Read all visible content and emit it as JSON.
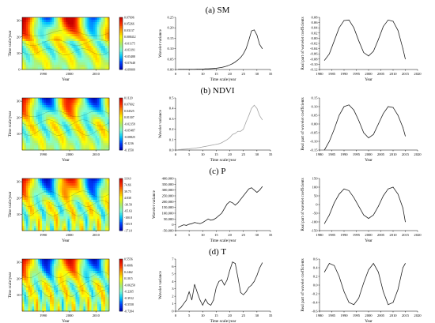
{
  "chart_data": [
    {
      "id": "sm",
      "title": "(a) SM",
      "wavelet_map": {
        "type": "heatmap",
        "xlabel": "Year",
        "ylabel": "Time scale/year",
        "xlim": [
          1982,
          2015
        ],
        "ylim": [
          0,
          32
        ],
        "x_ticks": [
          1990,
          2000,
          2010
        ],
        "y_ticks": [
          30,
          20,
          10,
          0
        ],
        "colorbar_ticks": [
          "0.07696",
          "0.05266",
          "0.03137",
          "0.008412",
          "-0.01175",
          "-0.03191",
          "-0.05488",
          "-0.07648",
          "-0.09909"
        ]
      },
      "variance": {
        "type": "line",
        "xlabel": "Time scale/year",
        "ylabel": "Wavelet variance",
        "xlim": [
          0,
          35
        ],
        "ylim": [
          0,
          0.25
        ],
        "x_ticks": [
          "0",
          "5",
          "10",
          "15",
          "20",
          "25",
          "30",
          "35"
        ],
        "y_ticks": [
          "0.00",
          "0.05",
          "0.10",
          "0.15",
          "0.20",
          "0.25"
        ],
        "x": [
          1,
          2,
          3,
          4,
          5,
          6,
          7,
          8,
          9,
          10,
          11,
          12,
          13,
          14,
          15,
          16,
          17,
          18,
          19,
          20,
          21,
          22,
          23,
          24,
          25,
          26,
          27,
          28,
          29,
          30,
          31,
          32
        ],
        "y": [
          0.001,
          0.001,
          0.001,
          0.001,
          0.001,
          0.001,
          0.001,
          0.002,
          0.002,
          0.002,
          0.003,
          0.003,
          0.004,
          0.005,
          0.006,
          0.008,
          0.01,
          0.013,
          0.017,
          0.022,
          0.028,
          0.036,
          0.046,
          0.058,
          0.075,
          0.1,
          0.14,
          0.185,
          0.19,
          0.165,
          0.12,
          0.1
        ]
      },
      "real_part": {
        "type": "line",
        "xlabel": "Year",
        "ylabel": "Real part of wavelet coefficients",
        "xlim": [
          1980,
          2020
        ],
        "ylim": [
          -0.12,
          0.08
        ],
        "x_ticks": [
          "1980",
          "1985",
          "1990",
          "1995",
          "2000",
          "2005",
          "2010",
          "2015",
          "2020"
        ],
        "y_ticks": [
          "0.08",
          "0.06",
          "0.04",
          "0.02",
          "0.00",
          "-0.02",
          "-0.04",
          "-0.06",
          "-0.08",
          "-0.10",
          "-0.12"
        ],
        "x": [
          1982,
          1984,
          1986,
          1988,
          1990,
          1992,
          1994,
          1996,
          1998,
          2000,
          2002,
          2004,
          2006,
          2008,
          2010,
          2012,
          2014,
          2015
        ],
        "y": [
          -0.085,
          -0.06,
          -0.01,
          0.04,
          0.068,
          0.07,
          0.04,
          -0.01,
          -0.055,
          -0.068,
          -0.05,
          -0.005,
          0.045,
          0.07,
          0.065,
          0.03,
          -0.04,
          -0.08
        ]
      }
    },
    {
      "id": "ndvi",
      "title": "(b) NDVI",
      "wavelet_map": {
        "type": "heatmap",
        "xlabel": "Year",
        "ylabel": "Time scale/year",
        "xlim": [
          1982,
          2015
        ],
        "ylim": [
          0,
          32
        ],
        "x_ticks": [
          1990,
          2000,
          2010
        ],
        "y_ticks": [
          30,
          20,
          10
        ],
        "colorbar_ticks": [
          "0.1120",
          "0.07602",
          "0.04525",
          "0.01307",
          "-0.02159",
          "-0.05487",
          "-0.08825",
          "-0.1216",
          "-0.1550"
        ]
      },
      "variance": {
        "type": "line",
        "xlabel": "Time scale/year",
        "ylabel": "Wavelet variance",
        "xlim": [
          0,
          35
        ],
        "ylim": [
          0,
          0.5
        ],
        "x_ticks": [
          "0",
          "5",
          "10",
          "15",
          "20",
          "25",
          "30",
          "35"
        ],
        "y_ticks": [
          "0.0",
          "0.1",
          "0.2",
          "0.3",
          "0.4",
          "0.5"
        ],
        "x": [
          1,
          2,
          3,
          4,
          5,
          6,
          7,
          8,
          9,
          10,
          11,
          12,
          13,
          14,
          15,
          16,
          17,
          18,
          19,
          20,
          21,
          22,
          23,
          24,
          25,
          26,
          27,
          28,
          29,
          30,
          31,
          32
        ],
        "y": [
          0.005,
          0.006,
          0.008,
          0.01,
          0.012,
          0.015,
          0.018,
          0.022,
          0.025,
          0.03,
          0.035,
          0.04,
          0.045,
          0.05,
          0.055,
          0.06,
          0.07,
          0.085,
          0.1,
          0.12,
          0.15,
          0.16,
          0.18,
          0.18,
          0.2,
          0.27,
          0.33,
          0.4,
          0.43,
          0.4,
          0.33,
          0.29
        ]
      },
      "real_part": {
        "type": "line",
        "xlabel": "Year",
        "ylabel": "Real part of wavelet coefficients",
        "xlim": [
          1980,
          2020
        ],
        "ylim": [
          -0.15,
          0.15
        ],
        "x_ticks": [
          "1980",
          "1985",
          "1990",
          "1995",
          "2000",
          "2005",
          "2010",
          "2015",
          "2020"
        ],
        "y_ticks": [
          "0.15",
          "0.10",
          "0.05",
          "0.00",
          "-0.05",
          "-0.10",
          "-0.15"
        ],
        "x": [
          1982,
          1984,
          1986,
          1988,
          1990,
          1992,
          1994,
          1996,
          1998,
          2000,
          2002,
          2004,
          2006,
          2008,
          2010,
          2012,
          2014,
          2015
        ],
        "y": [
          -0.15,
          -0.1,
          -0.03,
          0.05,
          0.1,
          0.11,
          0.08,
          0.02,
          -0.05,
          -0.08,
          -0.06,
          0.0,
          0.06,
          0.1,
          0.095,
          0.05,
          -0.02,
          -0.07
        ]
      }
    },
    {
      "id": "p",
      "title": "(c) P",
      "wavelet_map": {
        "type": "heatmap",
        "xlabel": "Year",
        "ylabel": "Time scale/year",
        "xlim": [
          1982,
          2015
        ],
        "ylim": [
          0,
          32
        ],
        "x_ticks": [
          1990,
          2000,
          2010
        ],
        "y_ticks": [
          30,
          20,
          10
        ],
        "colorbar_ticks": [
          "110.0",
          "74.66",
          "39.75",
          "4.838",
          "-30.50",
          "-65.63",
          "-100.8",
          "-135.9",
          "-171.0"
        ]
      },
      "variance": {
        "type": "line",
        "xlabel": "Time scale/year",
        "ylabel": "Wavelet variance",
        "xlim": [
          0,
          35
        ],
        "ylim": [
          -50000,
          400000
        ],
        "x_ticks": [
          "0",
          "5",
          "10",
          "15",
          "20",
          "25",
          "30",
          "35"
        ],
        "y_ticks": [
          "400,000",
          "350,000",
          "300,000",
          "250,000",
          "200,000",
          "150,000",
          "100,000",
          "50,000",
          "0",
          "-50,000"
        ],
        "x": [
          1,
          2,
          3,
          4,
          5,
          6,
          7,
          8,
          9,
          10,
          11,
          12,
          13,
          14,
          15,
          16,
          17,
          18,
          19,
          20,
          21,
          22,
          23,
          24,
          25,
          26,
          27,
          28,
          29,
          30,
          31,
          32
        ],
        "y": [
          -20000,
          -10000,
          0,
          -5000,
          5000,
          10000,
          20000,
          15000,
          10000,
          20000,
          35000,
          50000,
          40000,
          45000,
          60000,
          80000,
          100000,
          140000,
          180000,
          200000,
          190000,
          170000,
          190000,
          220000,
          250000,
          280000,
          310000,
          320000,
          300000,
          280000,
          300000,
          330000
        ]
      },
      "real_part": {
        "type": "line",
        "xlabel": "Year",
        "ylabel": "Real part of wavelet coefficients",
        "xlim": [
          1980,
          2020
        ],
        "ylim": [
          -150,
          150
        ],
        "x_ticks": [
          "1980",
          "1985",
          "1990",
          "1995",
          "2000",
          "2005",
          "2010",
          "2015",
          "2020"
        ],
        "y_ticks": [
          "150",
          "100",
          "50",
          "0",
          "-50",
          "-100",
          "-150"
        ],
        "x": [
          1982,
          1984,
          1986,
          1988,
          1990,
          1992,
          1994,
          1996,
          1998,
          2000,
          2002,
          2004,
          2006,
          2008,
          2010,
          2012,
          2014,
          2015
        ],
        "y": [
          -110,
          -60,
          10,
          60,
          90,
          80,
          40,
          -10,
          -60,
          -80,
          -60,
          -10,
          50,
          90,
          100,
          60,
          -20,
          -100
        ]
      }
    },
    {
      "id": "t",
      "title": "(d) T",
      "wavelet_map": {
        "type": "heatmap",
        "xlabel": "Year",
        "ylabel": "Time scale/year",
        "xlim": [
          1982,
          2015
        ],
        "ylim": [
          0,
          32
        ],
        "x_ticks": [
          1990,
          2000,
          2010
        ],
        "y_ticks": [
          30,
          20,
          10
        ],
        "colorbar_ticks": [
          "0.5556",
          "0.4006",
          "0.2462",
          "0.1015",
          "-0.06250",
          "-0.2265",
          "-0.3912",
          "-0.5558",
          "-0.7204"
        ]
      },
      "variance": {
        "type": "line",
        "xlabel": "Time scale/year",
        "ylabel": "Wavelet variance",
        "xlim": [
          0,
          35
        ],
        "ylim": [
          0,
          7
        ],
        "x_ticks": [
          "0",
          "5",
          "10",
          "15",
          "20",
          "25",
          "30",
          "35"
        ],
        "y_ticks": [
          "7",
          "6",
          "5",
          "4",
          "3",
          "2",
          "1",
          "0"
        ],
        "x": [
          1,
          2,
          3,
          4,
          5,
          6,
          7,
          8,
          9,
          10,
          11,
          12,
          13,
          14,
          15,
          16,
          17,
          18,
          19,
          20,
          21,
          22,
          23,
          24,
          25,
          26,
          27,
          28,
          29,
          30,
          31,
          32
        ],
        "y": [
          0.2,
          0.5,
          1.0,
          1.5,
          2.6,
          1.5,
          3.6,
          2.5,
          1.5,
          0.8,
          1.6,
          1.0,
          0.8,
          1.5,
          3.2,
          4.0,
          4.2,
          3.5,
          4.2,
          5.5,
          6.6,
          6.4,
          4.5,
          2.5,
          2.2,
          2.6,
          3.2,
          3.5,
          4.0,
          4.8,
          5.8,
          6.5
        ]
      },
      "real_part": {
        "type": "line",
        "xlabel": "Year",
        "ylabel": "Real part of wavelet coefficients",
        "xlim": [
          1980,
          2020
        ],
        "ylim": [
          -0.6,
          0.6
        ],
        "x_ticks": [
          "1980",
          "1985",
          "1990",
          "1995",
          "2000",
          "2005",
          "2010",
          "2015",
          "2020"
        ],
        "y_ticks": [
          "0.6",
          "0.4",
          "0.2",
          "0.0",
          "-0.2",
          "-0.4",
          "-0.6"
        ],
        "x": [
          1982,
          1984,
          1986,
          1988,
          1990,
          1992,
          1994,
          1996,
          1998,
          2000,
          2002,
          2004,
          2006,
          2008,
          2010,
          2012,
          2014,
          2015
        ],
        "y": [
          0.3,
          0.5,
          0.45,
          0.2,
          -0.15,
          -0.4,
          -0.45,
          -0.3,
          0.05,
          0.35,
          0.5,
          0.3,
          -0.15,
          -0.45,
          -0.4,
          -0.1,
          0.4,
          0.5
        ]
      }
    }
  ],
  "colors": {
    "line": "#222222",
    "line_light": "#a6a6a6",
    "colormap": [
      "#0000b4",
      "#0040ff",
      "#00c8ff",
      "#7fffd4",
      "#b4f064",
      "#ffff00",
      "#ffa000",
      "#ff3000",
      "#c80000"
    ]
  }
}
